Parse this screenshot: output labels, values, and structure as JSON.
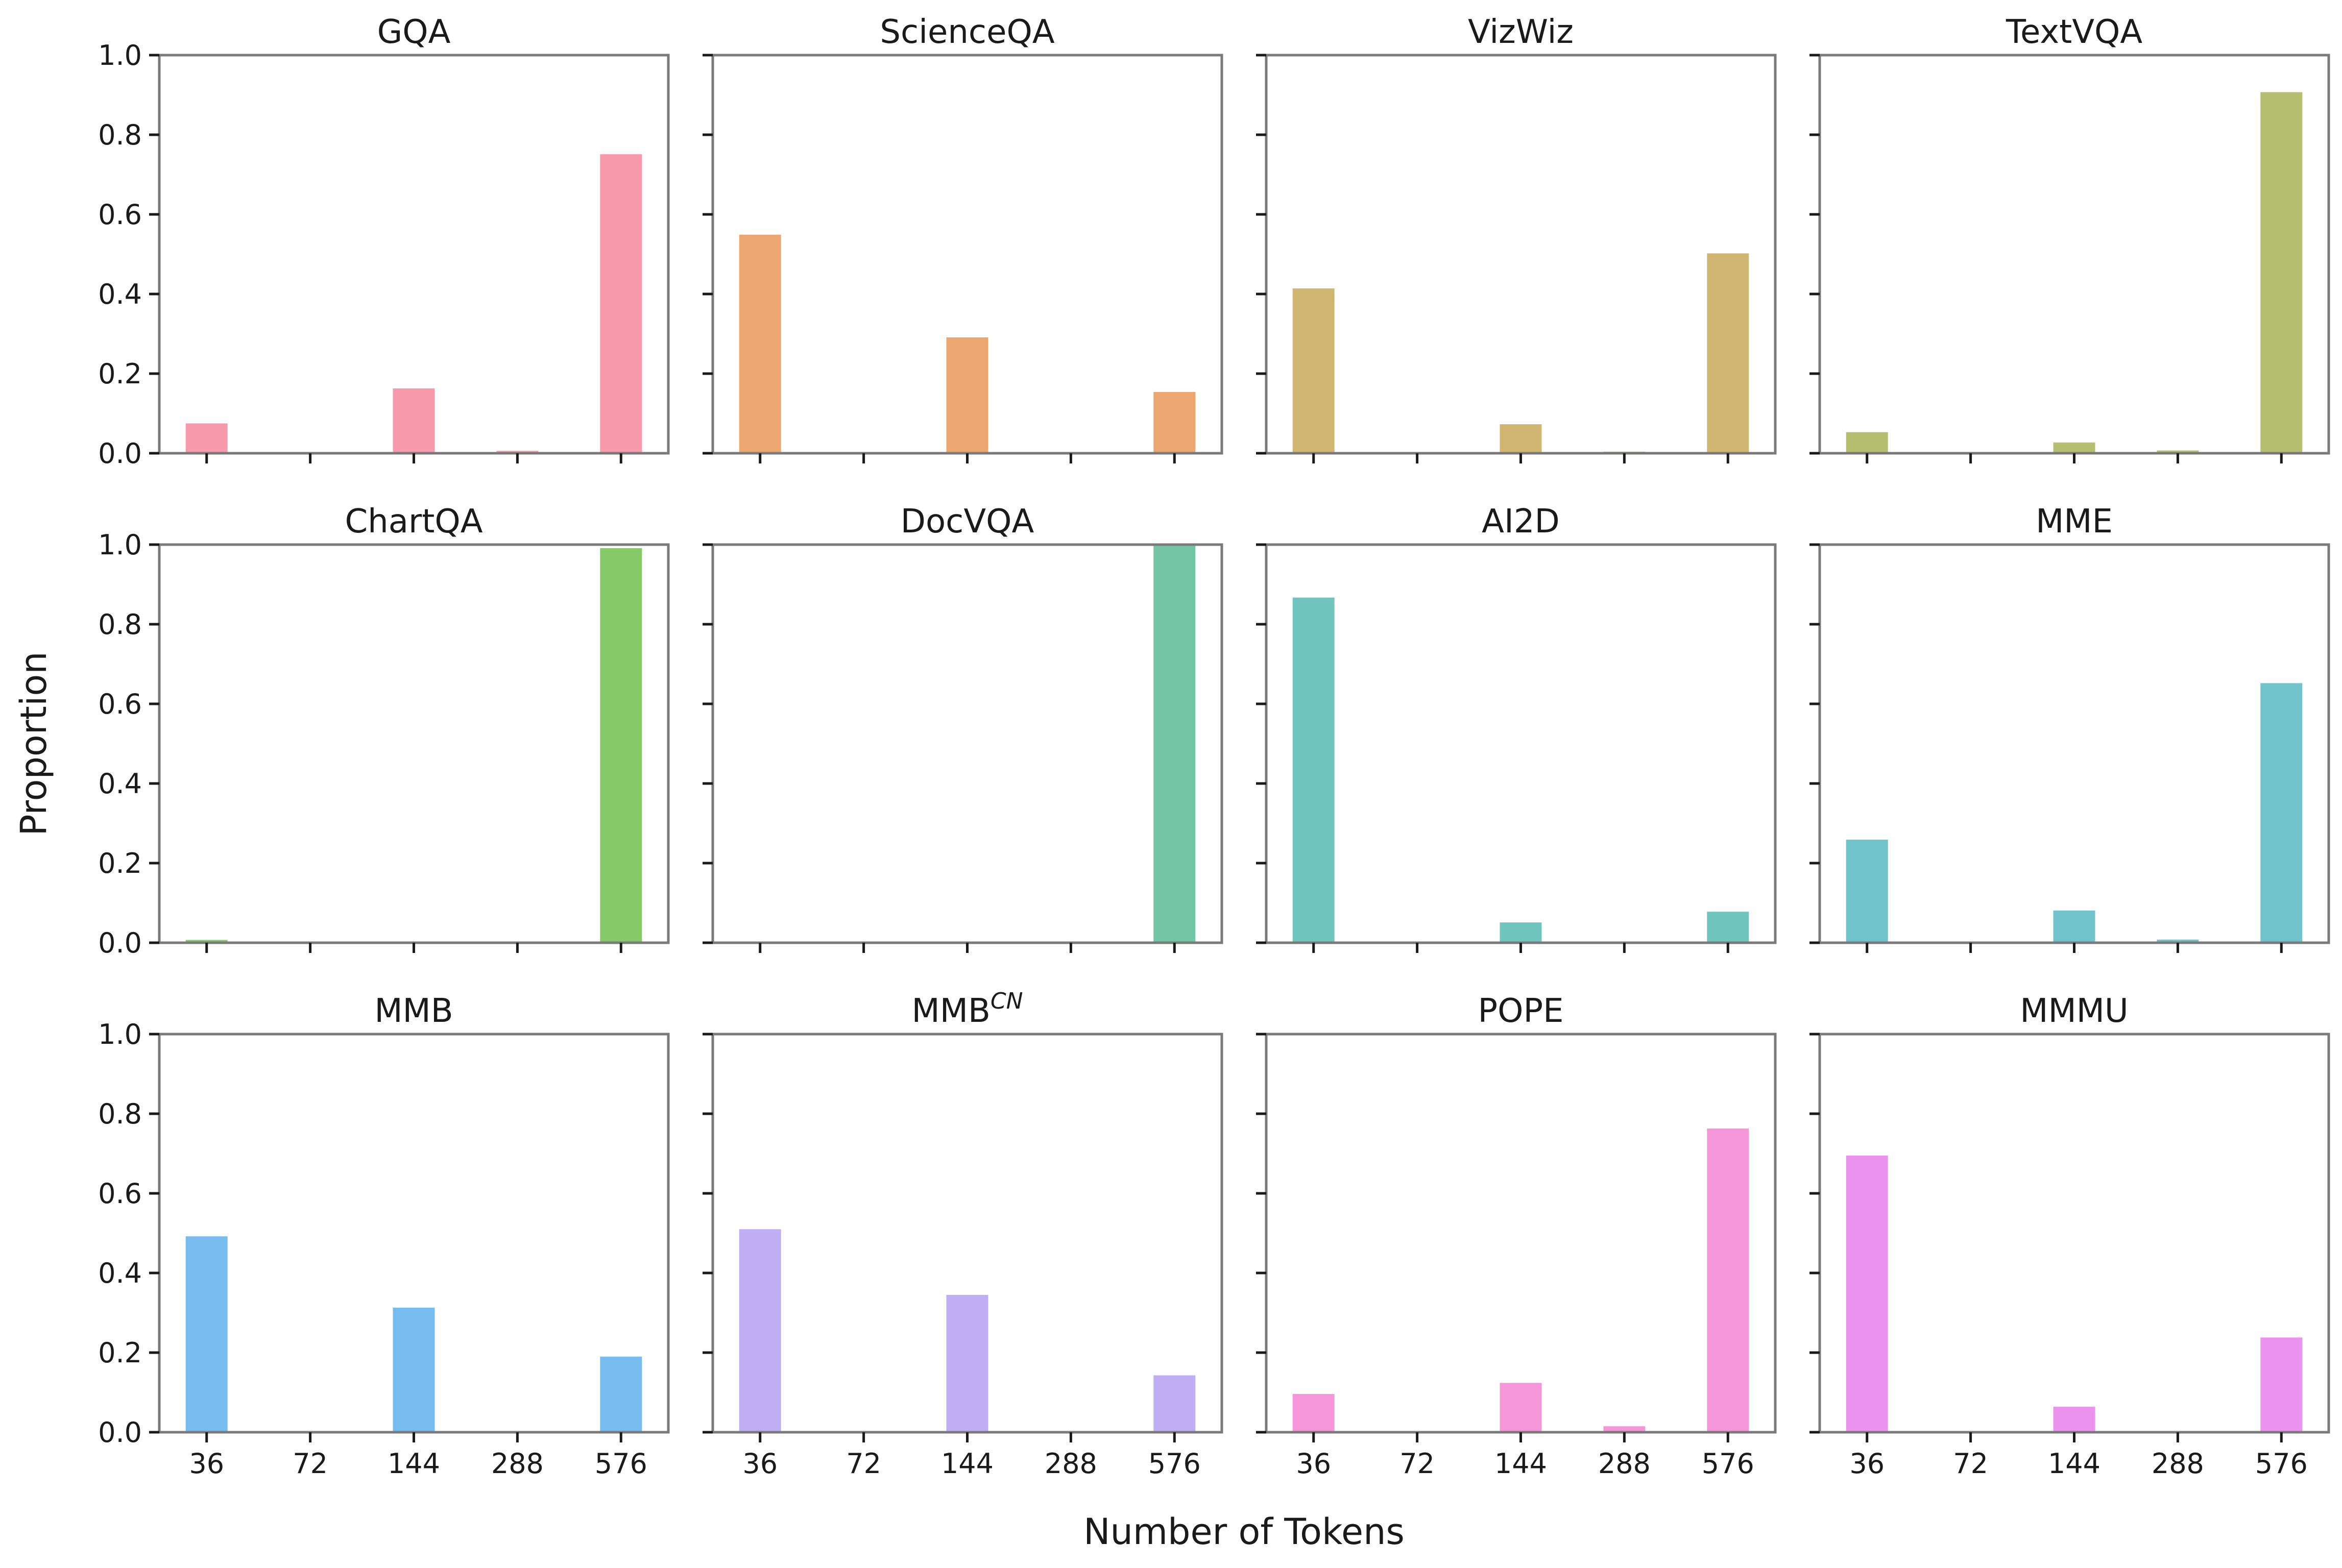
{
  "figure": {
    "xlabel": "Number of Tokens",
    "ylabel": "Proportion"
  },
  "chart_data": [
    {
      "type": "bar",
      "title": "GQA",
      "title_sup": "",
      "color": "#f79aac",
      "categories": [
        "36",
        "72",
        "144",
        "288",
        "576"
      ],
      "values": [
        0.075,
        0.0,
        0.163,
        0.006,
        0.751
      ],
      "ylim": [
        0,
        1
      ],
      "yticks": [
        "0.0",
        "0.2",
        "0.4",
        "0.6",
        "0.8",
        "1.0"
      ]
    },
    {
      "type": "bar",
      "title": "ScienceQA",
      "title_sup": "",
      "color": "#eba76f",
      "categories": [
        "36",
        "72",
        "144",
        "288",
        "576"
      ],
      "values": [
        0.549,
        0.0,
        0.291,
        0.0,
        0.154
      ],
      "ylim": [
        0,
        1
      ],
      "yticks": [
        "0.0",
        "0.2",
        "0.4",
        "0.6",
        "0.8",
        "1.0"
      ]
    },
    {
      "type": "bar",
      "title": "VizWiz",
      "title_sup": "",
      "color": "#d0b670",
      "categories": [
        "36",
        "72",
        "144",
        "288",
        "576"
      ],
      "values": [
        0.414,
        0.0,
        0.073,
        0.004,
        0.502
      ],
      "ylim": [
        0,
        1
      ],
      "yticks": [
        "0.0",
        "0.2",
        "0.4",
        "0.6",
        "0.8",
        "1.0"
      ]
    },
    {
      "type": "bar",
      "title": "TextVQA",
      "title_sup": "",
      "color": "#b5bf6f",
      "categories": [
        "36",
        "72",
        "144",
        "288",
        "576"
      ],
      "values": [
        0.053,
        0.0,
        0.027,
        0.007,
        0.907
      ],
      "ylim": [
        0,
        1
      ],
      "yticks": [
        "0.0",
        "0.2",
        "0.4",
        "0.6",
        "0.8",
        "1.0"
      ]
    },
    {
      "type": "bar",
      "title": "ChartQA",
      "title_sup": "",
      "color": "#85c96b",
      "categories": [
        "36",
        "72",
        "144",
        "288",
        "576"
      ],
      "values": [
        0.007,
        0.0,
        0.0,
        0.0,
        0.991
      ],
      "ylim": [
        0,
        1
      ],
      "yticks": [
        "0.0",
        "0.2",
        "0.4",
        "0.6",
        "0.8",
        "1.0"
      ]
    },
    {
      "type": "bar",
      "title": "DocVQA",
      "title_sup": "",
      "color": "#72c6a6",
      "categories": [
        "36",
        "72",
        "144",
        "288",
        "576"
      ],
      "values": [
        0.0,
        0.0,
        0.0,
        0.0,
        1.0
      ],
      "ylim": [
        0,
        1
      ],
      "yticks": [
        "0.0",
        "0.2",
        "0.4",
        "0.6",
        "0.8",
        "1.0"
      ]
    },
    {
      "type": "bar",
      "title": "AI2D",
      "title_sup": "",
      "color": "#70c6bd",
      "categories": [
        "36",
        "72",
        "144",
        "288",
        "576"
      ],
      "values": [
        0.867,
        0.0,
        0.051,
        0.0,
        0.078
      ],
      "ylim": [
        0,
        1
      ],
      "yticks": [
        "0.0",
        "0.2",
        "0.4",
        "0.6",
        "0.8",
        "1.0"
      ]
    },
    {
      "type": "bar",
      "title": "MME",
      "title_sup": "",
      "color": "#72c4cc",
      "categories": [
        "36",
        "72",
        "144",
        "288",
        "576"
      ],
      "values": [
        0.259,
        0.0,
        0.081,
        0.008,
        0.652
      ],
      "ylim": [
        0,
        1
      ],
      "yticks": [
        "0.0",
        "0.2",
        "0.4",
        "0.6",
        "0.8",
        "1.0"
      ]
    },
    {
      "type": "bar",
      "title": "MMB",
      "title_sup": "",
      "color": "#77bcee",
      "categories": [
        "36",
        "72",
        "144",
        "288",
        "576"
      ],
      "values": [
        0.492,
        0.0,
        0.313,
        0.0,
        0.19
      ],
      "ylim": [
        0,
        1
      ],
      "yticks": [
        "0.0",
        "0.2",
        "0.4",
        "0.6",
        "0.8",
        "1.0"
      ]
    },
    {
      "type": "bar",
      "title": "MMB",
      "title_sup": "CN",
      "color": "#c0aef5",
      "categories": [
        "36",
        "72",
        "144",
        "288",
        "576"
      ],
      "values": [
        0.51,
        0.0,
        0.345,
        0.0,
        0.143
      ],
      "ylim": [
        0,
        1
      ],
      "yticks": [
        "0.0",
        "0.2",
        "0.4",
        "0.6",
        "0.8",
        "1.0"
      ]
    },
    {
      "type": "bar",
      "title": "POPE",
      "title_sup": "",
      "color": "#f596d8",
      "categories": [
        "36",
        "72",
        "144",
        "288",
        "576"
      ],
      "values": [
        0.096,
        0.0,
        0.124,
        0.015,
        0.763
      ],
      "ylim": [
        0,
        1
      ],
      "yticks": [
        "0.0",
        "0.2",
        "0.4",
        "0.6",
        "0.8",
        "1.0"
      ]
    },
    {
      "type": "bar",
      "title": "MMMU",
      "title_sup": "",
      "color": "#ec92ef",
      "categories": [
        "36",
        "72",
        "144",
        "288",
        "576"
      ],
      "values": [
        0.695,
        0.0,
        0.064,
        0.0,
        0.238
      ],
      "ylim": [
        0,
        1
      ],
      "yticks": [
        "0.0",
        "0.2",
        "0.4",
        "0.6",
        "0.8",
        "1.0"
      ]
    }
  ]
}
